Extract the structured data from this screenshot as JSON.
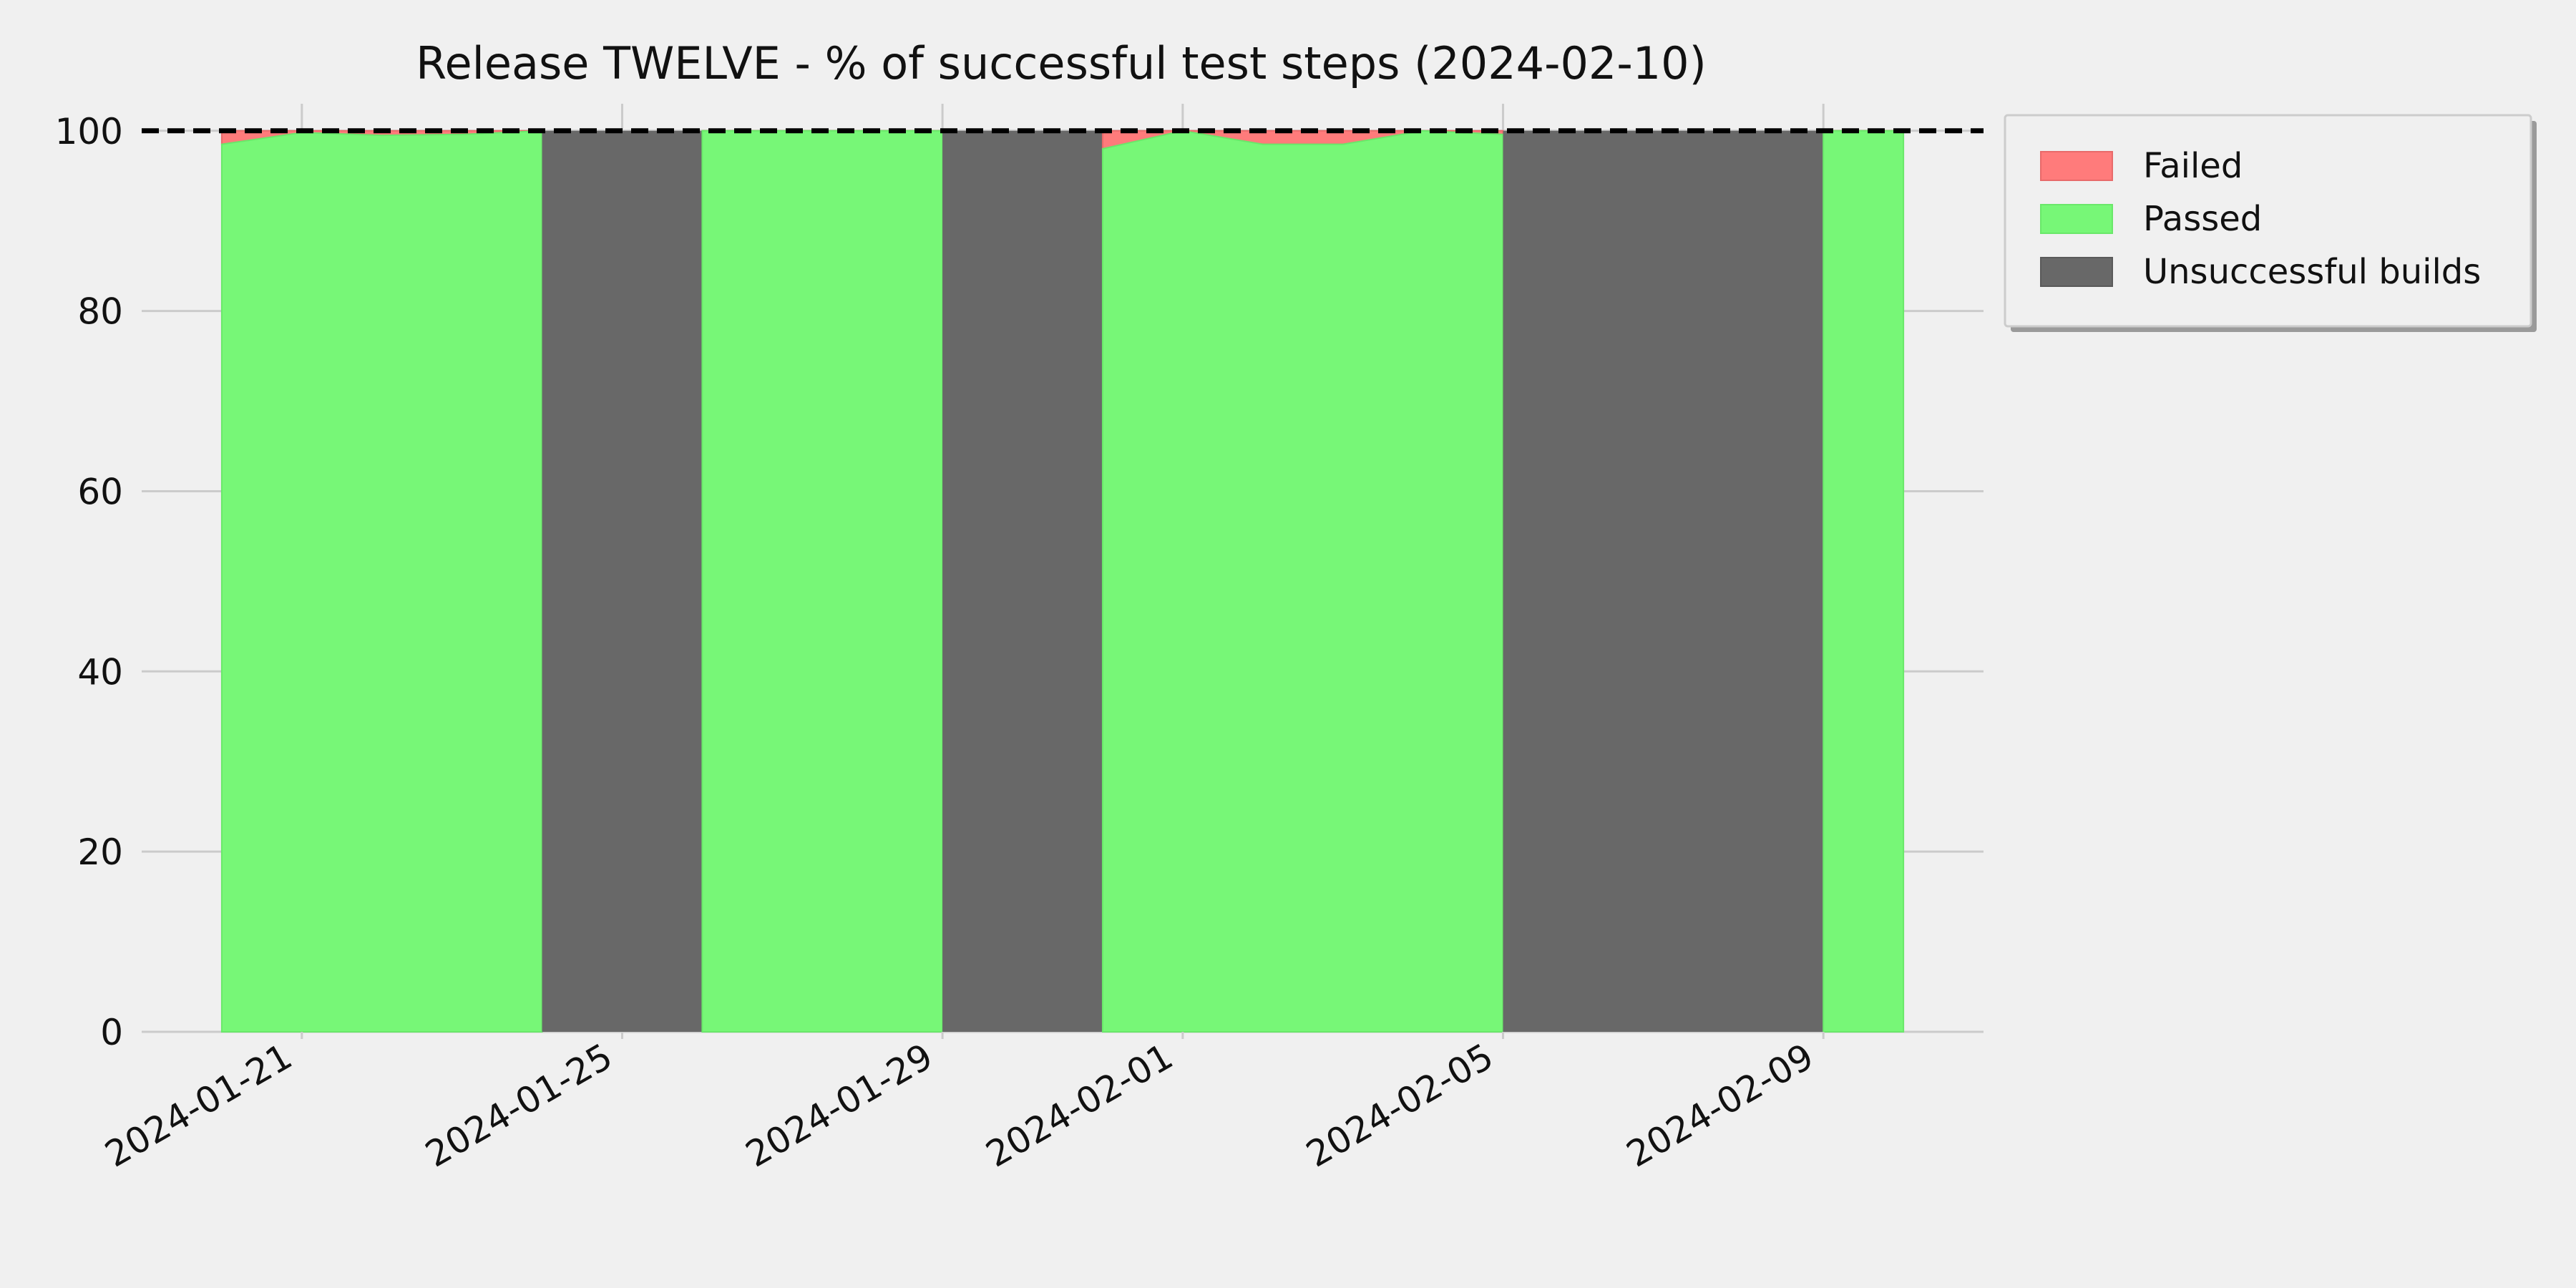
{
  "chart_data": {
    "type": "area",
    "title": "Release TWELVE - % of successful test steps (2024-02-10)",
    "xlabel": "",
    "ylabel": "",
    "x_axis": {
      "type": "date",
      "range": [
        "2024-01-19",
        "2024-02-11"
      ],
      "ticks": [
        "2024-01-21",
        "2024-01-25",
        "2024-01-29",
        "2024-02-01",
        "2024-02-05",
        "2024-02-09"
      ]
    },
    "y_axis": {
      "range": [
        0,
        103
      ],
      "ticks": [
        0,
        20,
        40,
        60,
        80,
        100
      ]
    },
    "grid": true,
    "reference_line": {
      "y": 100,
      "style": "dashed"
    },
    "colors": {
      "failed": "#ff7b7b",
      "passed": "#77f777",
      "unsuccessful": "#686868",
      "reference": "#000000"
    },
    "legend": {
      "position": "outside-top-right"
    },
    "series": [
      {
        "name": "Failed",
        "color": "#ff7b7b"
      },
      {
        "name": "Passed",
        "color": "#77f777"
      },
      {
        "name": "Unsuccessful builds",
        "color": "#686868"
      }
    ],
    "segments": [
      {
        "kind": "tests",
        "points": [
          {
            "x": "2024-01-20",
            "passed": 98.5
          },
          {
            "x": "2024-01-21",
            "passed": 99.8
          },
          {
            "x": "2024-01-22",
            "passed": 99.5
          },
          {
            "x": "2024-01-23",
            "passed": 99.6
          },
          {
            "x": "2024-01-24",
            "passed": 100
          }
        ]
      },
      {
        "kind": "unsuccessful",
        "from": "2024-01-24",
        "to": "2024-01-26"
      },
      {
        "kind": "tests",
        "points": [
          {
            "x": "2024-01-26",
            "passed": 100
          },
          {
            "x": "2024-01-27",
            "passed": 100
          },
          {
            "x": "2024-01-28",
            "passed": 100
          },
          {
            "x": "2024-01-29",
            "passed": 100
          }
        ]
      },
      {
        "kind": "unsuccessful",
        "from": "2024-01-29",
        "to": "2024-01-31"
      },
      {
        "kind": "tests",
        "points": [
          {
            "x": "2024-01-31",
            "passed": 98
          },
          {
            "x": "2024-02-01",
            "passed": 100
          },
          {
            "x": "2024-02-02",
            "passed": 98.5
          },
          {
            "x": "2024-02-03",
            "passed": 98.5
          },
          {
            "x": "2024-02-04",
            "passed": 100
          },
          {
            "x": "2024-02-05",
            "passed": 99.6
          }
        ]
      },
      {
        "kind": "unsuccessful",
        "from": "2024-02-05",
        "to": "2024-02-09"
      },
      {
        "kind": "tests",
        "points": [
          {
            "x": "2024-02-09",
            "passed": 100
          },
          {
            "x": "2024-02-10",
            "passed": 100
          }
        ]
      }
    ]
  }
}
